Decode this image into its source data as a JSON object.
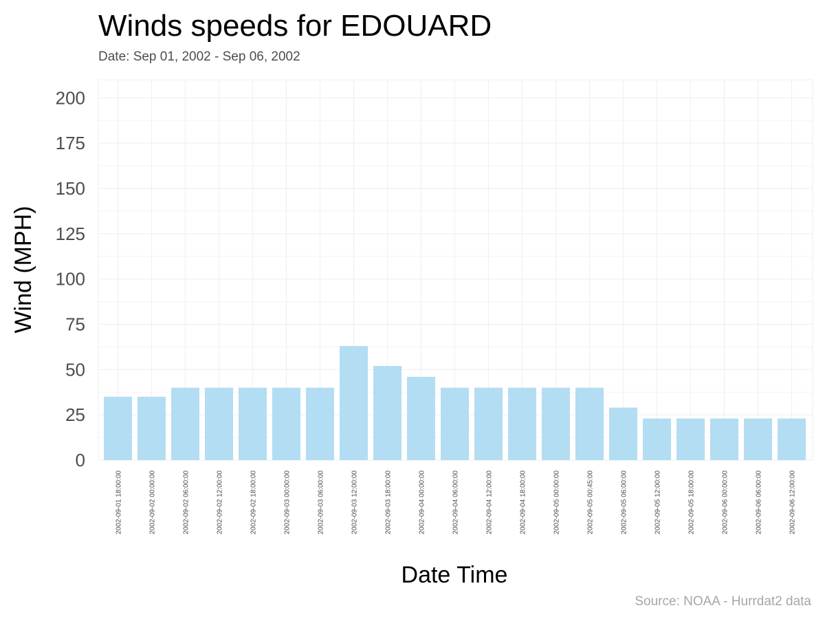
{
  "chart_data": {
    "type": "bar",
    "title": "Winds speeds for EDOUARD",
    "subtitle": "Date:  Sep 01, 2002 - Sep 06, 2002",
    "xlabel": "Date Time",
    "ylabel": "Wind (MPH)",
    "caption": "Source: NOAA - Hurrdat2 data",
    "ylim": [
      0,
      210
    ],
    "yticks": [
      "0",
      "25",
      "50",
      "75",
      "100",
      "125",
      "150",
      "175",
      "200"
    ],
    "categories": [
      "2002-09-01 18:00:00",
      "2002-09-02 00:00:00",
      "2002-09-02 06:00:00",
      "2002-09-02 12:00:00",
      "2002-09-02 18:00:00",
      "2002-09-03 00:00:00",
      "2002-09-03 06:00:00",
      "2002-09-03 12:00:00",
      "2002-09-03 18:00:00",
      "2002-09-04 00:00:00",
      "2002-09-04 06:00:00",
      "2002-09-04 12:00:00",
      "2002-09-04 18:00:00",
      "2002-09-05 00:00:00",
      "2002-09-05 00:45:00",
      "2002-09-05 06:00:00",
      "2002-09-05 12:00:00",
      "2002-09-05 18:00:00",
      "2002-09-06 00:00:00",
      "2002-09-06 06:00:00",
      "2002-09-06 12:00:00"
    ],
    "values": [
      35,
      35,
      40,
      40,
      40,
      40,
      40,
      63,
      52,
      46,
      40,
      40,
      40,
      40,
      40,
      29,
      23,
      23,
      23,
      23,
      23
    ],
    "bar_color": "#b3ddf2",
    "grid_color": "#f0f0f0",
    "grid": true,
    "legend": "none"
  }
}
